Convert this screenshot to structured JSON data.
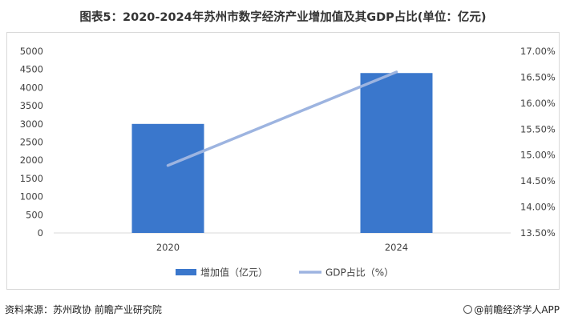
{
  "title": "图表5：2020-2024年苏州市数字经济产业增加值及其GDP占比(单位：亿元)",
  "footer": {
    "source": "资料来源：苏州政协 前瞻产业研究院",
    "brand": "@前瞻经济学人APP"
  },
  "chart_data": {
    "type": "bar",
    "categories": [
      "2020",
      "2024"
    ],
    "series": [
      {
        "name": "增加值（亿元）",
        "kind": "bar",
        "axis": "left",
        "color": "#3a77cc",
        "values": [
          3000,
          4400
        ]
      },
      {
        "name": "GDP占比（%）",
        "kind": "line",
        "axis": "right",
        "color": "#9db4e0",
        "values": [
          14.8,
          16.6
        ]
      }
    ],
    "y_left": {
      "min": 0,
      "max": 5000,
      "step": 500,
      "ticks": [
        "0",
        "500",
        "1000",
        "1500",
        "2000",
        "2500",
        "3000",
        "3500",
        "4000",
        "4500",
        "5000"
      ]
    },
    "y_right": {
      "min": 13.5,
      "max": 17.0,
      "step": 0.5,
      "ticks": [
        "13.50%",
        "14.00%",
        "14.50%",
        "15.00%",
        "15.50%",
        "16.00%",
        "16.50%",
        "17.00%"
      ]
    },
    "grid": false,
    "legend_position": "bottom"
  }
}
